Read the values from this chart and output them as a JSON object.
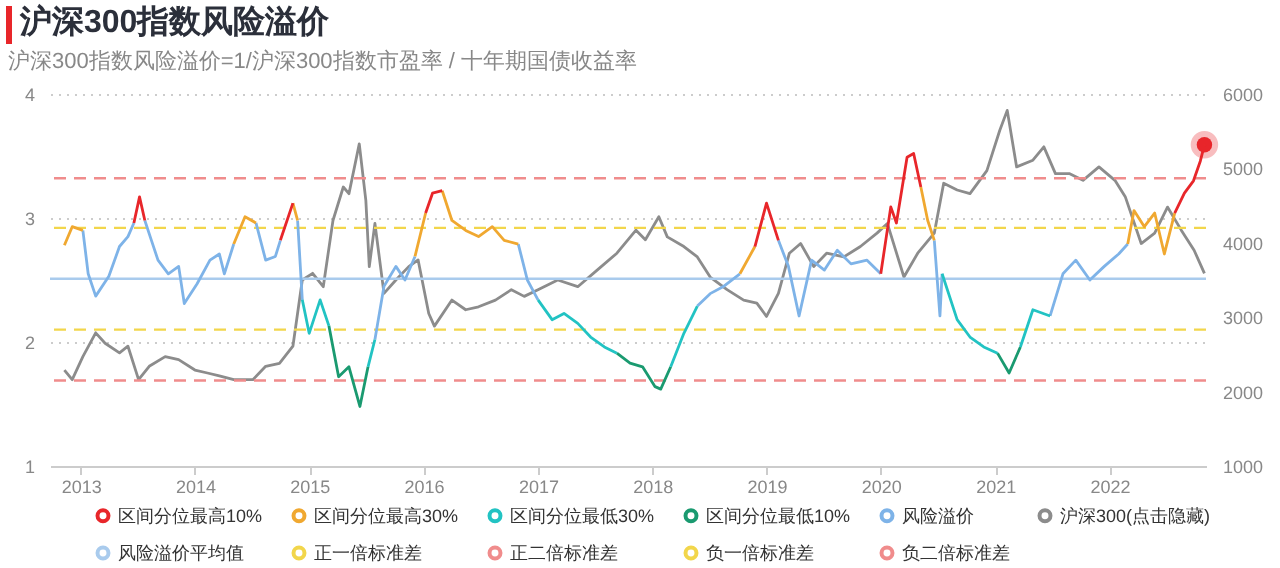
{
  "chart_data": {
    "type": "line",
    "title": "沪深300指数风险溢价",
    "subtitle": "沪深300指数风险溢价=1/沪深300指数市盈率 / 十年期国债收益率",
    "xlim": [
      "2012-09-25",
      "2022-11-05"
    ],
    "xticks": [
      "2013",
      "2014",
      "2015",
      "2016",
      "2017",
      "2018",
      "2019",
      "2020",
      "2021",
      "2022"
    ],
    "ylim": [
      1,
      4
    ],
    "yticks": [
      1,
      2,
      3,
      4
    ],
    "y2lim": [
      1000,
      6000
    ],
    "y2ticks": [
      1000,
      2000,
      3000,
      4000,
      5000,
      6000
    ],
    "grid": "y",
    "legend": "bottom",
    "x": [
      "2012-11-10",
      "2012-12-05",
      "2013-01-08",
      "2013-01-25",
      "2013-02-18",
      "2013-04-01",
      "2013-05-05",
      "2013-06-01",
      "2013-06-20",
      "2013-07-08",
      "2013-07-25",
      "2013-08-15",
      "2013-09-05",
      "2013-10-08",
      "2013-11-10",
      "2013-11-28",
      "2014-01-08",
      "2014-02-18",
      "2014-03-20",
      "2014-04-05",
      "2014-05-05",
      "2014-06-10",
      "2014-07-15",
      "2014-08-15",
      "2014-09-15",
      "2014-10-01",
      "2014-11-10",
      "2014-11-25",
      "2014-12-10",
      "2015-01-01",
      "2015-02-05",
      "2015-03-05",
      "2015-04-05",
      "2015-05-08",
      "2015-06-12",
      "2015-07-08",
      "2015-07-30",
      "2015-08-28",
      "2015-10-05",
      "2015-11-03",
      "2015-12-05",
      "2016-01-08",
      "2016-01-30",
      "2016-03-01",
      "2016-04-01",
      "2016-05-15",
      "2016-06-25",
      "2016-08-08",
      "2016-09-15",
      "2016-10-30",
      "2016-11-28",
      "2017-01-01",
      "2017-02-15",
      "2017-03-25",
      "2017-05-08",
      "2017-06-18",
      "2017-08-01",
      "2017-09-10",
      "2017-10-22",
      "2017-12-01",
      "2018-01-10",
      "2018-01-28",
      "2018-03-01",
      "2018-04-12",
      "2018-05-25",
      "2018-07-05",
      "2018-08-18",
      "2018-10-08",
      "2018-11-25",
      "2019-01-01",
      "2019-02-08",
      "2019-03-12",
      "2019-04-15",
      "2019-05-25",
      "2019-07-05",
      "2019-08-15",
      "2019-09-28",
      "2019-11-18",
      "2020-01-01",
      "2020-02-02",
      "2020-02-20",
      "2020-03-25",
      "2020-04-15",
      "2020-05-08",
      "2020-05-30",
      "2020-06-20",
      "2020-07-08",
      "2020-07-15",
      "2020-09-01",
      "2020-10-12",
      "2020-11-25",
      "2021-01-08",
      "2021-02-14",
      "2021-03-22",
      "2021-05-01",
      "2021-06-25",
      "2021-08-05",
      "2021-09-15",
      "2021-10-30",
      "2021-12-15",
      "2022-01-30",
      "2022-02-28",
      "2022-03-20",
      "2022-04-22",
      "2022-05-25",
      "2022-06-25",
      "2022-07-28",
      "2022-08-28",
      "2022-09-26",
      "2022-10-18",
      "2022-10-31"
    ],
    "series": [
      {
        "name": "区间分位最高10%",
        "color": "#e8262a",
        "values": [
          null,
          null,
          null,
          null,
          null,
          null,
          null,
          null,
          2.96,
          3.17,
          2.98,
          null,
          null,
          null,
          null,
          null,
          null,
          null,
          null,
          null,
          null,
          null,
          null,
          null,
          null,
          2.82,
          3.12,
          null,
          null,
          null,
          null,
          null,
          null,
          null,
          null,
          null,
          null,
          null,
          null,
          null,
          null,
          3.04,
          3.2,
          3.22,
          null,
          null,
          null,
          null,
          null,
          null,
          null,
          null,
          null,
          null,
          null,
          null,
          null,
          null,
          null,
          null,
          null,
          null,
          null,
          null,
          null,
          null,
          null,
          null,
          2.77,
          3.12,
          2.82,
          null,
          null,
          null,
          null,
          null,
          null,
          null,
          2.55,
          3.09,
          2.96,
          3.49,
          3.52,
          3.25,
          null,
          null,
          null,
          null,
          null,
          null,
          null,
          null,
          null,
          null,
          null,
          null,
          null,
          null,
          null,
          null,
          null,
          null,
          null,
          null,
          null,
          null,
          3.04,
          3.2,
          3.3,
          3.46,
          3.59
        ]
      },
      {
        "name": "区间分位最高30%",
        "color": "#f0a830",
        "values": [
          2.78,
          2.93,
          2.9,
          null,
          null,
          null,
          null,
          null,
          null,
          null,
          null,
          null,
          null,
          null,
          null,
          null,
          null,
          null,
          null,
          null,
          2.79,
          3.01,
          2.96,
          null,
          null,
          null,
          3.12,
          2.98,
          null,
          null,
          null,
          null,
          null,
          null,
          null,
          null,
          null,
          null,
          null,
          null,
          2.69,
          3.04,
          null,
          3.22,
          2.98,
          2.9,
          2.85,
          2.93,
          2.82,
          2.79,
          null,
          null,
          null,
          null,
          null,
          null,
          null,
          null,
          null,
          null,
          null,
          null,
          null,
          null,
          null,
          null,
          null,
          2.55,
          2.77,
          null,
          null,
          null,
          null,
          null,
          null,
          null,
          null,
          null,
          null,
          null,
          null,
          null,
          null,
          3.25,
          2.98,
          2.82,
          null,
          null,
          null,
          null,
          null,
          null,
          null,
          null,
          null,
          null,
          null,
          null,
          null,
          null,
          null,
          2.79,
          3.06,
          2.93,
          3.04,
          2.71,
          3.04,
          null,
          null,
          null,
          null
        ]
      },
      {
        "name": "区间分位最低30%",
        "color": "#22c3c3",
        "values": [
          null,
          null,
          null,
          null,
          null,
          null,
          null,
          null,
          null,
          null,
          null,
          null,
          null,
          null,
          null,
          null,
          null,
          null,
          null,
          null,
          null,
          null,
          null,
          null,
          null,
          null,
          null,
          null,
          2.34,
          2.07,
          2.34,
          2.13,
          null,
          null,
          null,
          1.8,
          2.02,
          null,
          null,
          null,
          null,
          null,
          null,
          null,
          null,
          null,
          null,
          null,
          null,
          null,
          null,
          2.34,
          2.18,
          2.23,
          2.15,
          2.04,
          1.96,
          1.91,
          null,
          null,
          null,
          null,
          1.8,
          2.07,
          2.29,
          null,
          null,
          null,
          null,
          null,
          null,
          null,
          null,
          null,
          null,
          null,
          null,
          null,
          null,
          null,
          null,
          null,
          null,
          null,
          null,
          null,
          null,
          2.55,
          2.18,
          2.04,
          1.96,
          1.91,
          null,
          1.96,
          2.26,
          2.21,
          null,
          null,
          null,
          null,
          null,
          null,
          null,
          null,
          null,
          null,
          null,
          null,
          null,
          null,
          null
        ]
      },
      {
        "name": "区间分位最低10%",
        "color": "#1a9a70",
        "values": [
          null,
          null,
          null,
          null,
          null,
          null,
          null,
          null,
          null,
          null,
          null,
          null,
          null,
          null,
          null,
          null,
          null,
          null,
          null,
          null,
          null,
          null,
          null,
          null,
          null,
          null,
          null,
          null,
          null,
          null,
          null,
          2.13,
          1.72,
          1.8,
          1.48,
          1.8,
          null,
          null,
          null,
          null,
          null,
          null,
          null,
          null,
          null,
          null,
          null,
          null,
          null,
          null,
          null,
          null,
          null,
          null,
          null,
          null,
          null,
          1.91,
          1.83,
          1.8,
          1.64,
          1.62,
          1.8,
          null,
          null,
          null,
          null,
          null,
          null,
          null,
          null,
          null,
          null,
          null,
          null,
          null,
          null,
          null,
          null,
          null,
          null,
          null,
          null,
          null,
          null,
          null,
          null,
          null,
          null,
          null,
          null,
          1.91,
          1.75,
          1.96,
          null,
          null,
          null,
          null,
          null,
          null,
          null,
          null,
          null,
          null,
          null,
          null,
          null,
          null,
          null,
          null,
          null
        ]
      },
      {
        "name": "风险溢价",
        "color": "#7eb3e8",
        "values": [
          null,
          null,
          2.9,
          2.55,
          2.37,
          2.53,
          2.77,
          2.85,
          2.96,
          null,
          2.98,
          2.82,
          2.66,
          2.55,
          2.61,
          2.31,
          2.47,
          2.66,
          2.71,
          2.55,
          2.79,
          null,
          2.96,
          2.66,
          2.69,
          2.82,
          null,
          2.98,
          2.34,
          null,
          null,
          null,
          null,
          null,
          null,
          null,
          2.02,
          2.45,
          2.61,
          2.5,
          2.69,
          null,
          null,
          null,
          null,
          null,
          null,
          null,
          null,
          2.79,
          2.5,
          2.34,
          null,
          null,
          null,
          null,
          null,
          null,
          null,
          null,
          null,
          null,
          null,
          null,
          2.29,
          2.39,
          2.45,
          2.55,
          null,
          null,
          2.82,
          2.61,
          2.21,
          2.66,
          2.58,
          2.74,
          2.63,
          2.66,
          2.55,
          null,
          null,
          null,
          null,
          null,
          null,
          2.82,
          2.21,
          2.55,
          null,
          null,
          null,
          null,
          null,
          null,
          null,
          2.21,
          2.55,
          2.66,
          2.5,
          2.61,
          2.71,
          2.79,
          null,
          null,
          null,
          null,
          null,
          null,
          null,
          null,
          null
        ]
      },
      {
        "name": "沪深300(点击隐藏)",
        "color": "#8c8c8c",
        "axis": "y2",
        "x": [
          "2012-11-10",
          "2012-12-05",
          "2013-01-08",
          "2013-02-18",
          "2013-03-20",
          "2013-05-05",
          "2013-06-01",
          "2013-07-05",
          "2013-08-08",
          "2013-09-28",
          "2013-11-10",
          "2014-01-01",
          "2014-02-10",
          "2014-03-20",
          "2014-05-05",
          "2014-07-05",
          "2014-08-15",
          "2014-09-28",
          "2014-11-10",
          "2014-12-10",
          "2015-01-12",
          "2015-02-15",
          "2015-03-18",
          "2015-04-20",
          "2015-05-08",
          "2015-06-10",
          "2015-07-01",
          "2015-07-12",
          "2015-07-30",
          "2015-08-28",
          "2015-10-05",
          "2015-11-15",
          "2015-12-15",
          "2016-01-18",
          "2016-02-05",
          "2016-04-01",
          "2016-05-15",
          "2016-06-25",
          "2016-08-18",
          "2016-10-08",
          "2016-11-18",
          "2017-01-01",
          "2017-03-05",
          "2017-05-08",
          "2017-07-08",
          "2017-09-10",
          "2017-11-10",
          "2017-12-10",
          "2018-01-22",
          "2018-02-18",
          "2018-04-12",
          "2018-05-25",
          "2018-07-05",
          "2018-08-28",
          "2018-10-20",
          "2018-12-01",
          "2019-01-01",
          "2019-02-08",
          "2019-03-15",
          "2019-04-20",
          "2019-06-01",
          "2019-07-12",
          "2019-09-05",
          "2019-10-28",
          "2019-12-20",
          "2020-01-22",
          "2020-03-15",
          "2020-04-28",
          "2020-06-20",
          "2020-07-20",
          "2020-09-01",
          "2020-10-12",
          "2020-12-05",
          "2021-01-15",
          "2021-02-08",
          "2021-03-10",
          "2021-05-01",
          "2021-06-05",
          "2021-07-12",
          "2021-08-25",
          "2021-10-08",
          "2021-11-28",
          "2022-01-18",
          "2022-02-20",
          "2022-04-12",
          "2022-05-25",
          "2022-07-05",
          "2022-08-18",
          "2022-09-28",
          "2022-10-31"
        ],
        "values": [
          2290,
          2160,
          2470,
          2790,
          2650,
          2520,
          2610,
          2160,
          2340,
          2470,
          2430,
          2290,
          2250,
          2210,
          2160,
          2160,
          2340,
          2380,
          2610,
          3500,
          3590,
          3410,
          4300,
          4750,
          4660,
          5330,
          4570,
          3680,
          4260,
          3320,
          3500,
          3680,
          3770,
          3050,
          2880,
          3230,
          3100,
          3140,
          3230,
          3370,
          3280,
          3370,
          3500,
          3410,
          3630,
          3860,
          4170,
          4040,
          4350,
          4080,
          3950,
          3810,
          3540,
          3370,
          3230,
          3190,
          3010,
          3320,
          3860,
          3990,
          3680,
          3860,
          3810,
          3950,
          4130,
          4260,
          3540,
          3860,
          4130,
          4800,
          4710,
          4660,
          4970,
          5510,
          5780,
          5020,
          5110,
          5290,
          4930,
          4930,
          4840,
          5020,
          4840,
          4620,
          3990,
          4130,
          4480,
          4170,
          3900,
          3590
        ]
      },
      {
        "type": "scatter",
        "color": "#e8262a",
        "marker": "circle",
        "x": [
          "2022-10-31"
        ],
        "values": [
          3.59
        ]
      }
    ],
    "ref_lines": [
      {
        "axis": "y",
        "value": 2.51,
        "label": "风险溢价平均值",
        "color": "#a9cbed",
        "line_style": "solid"
      },
      {
        "axis": "y",
        "value": 2.92,
        "label": "正一倍标准差",
        "color": "#f2d64b",
        "line_style": "dashed"
      },
      {
        "axis": "y",
        "value": 3.32,
        "label": "正二倍标准差",
        "color": "#f08c8c",
        "line_style": "dashed"
      },
      {
        "axis": "y",
        "value": 2.1,
        "label": "负一倍标准差",
        "color": "#f2d64b",
        "line_style": "dashed"
      },
      {
        "axis": "y",
        "value": 1.69,
        "label": "负二倍标准差",
        "color": "#f08c8c",
        "line_style": "dashed"
      }
    ]
  }
}
